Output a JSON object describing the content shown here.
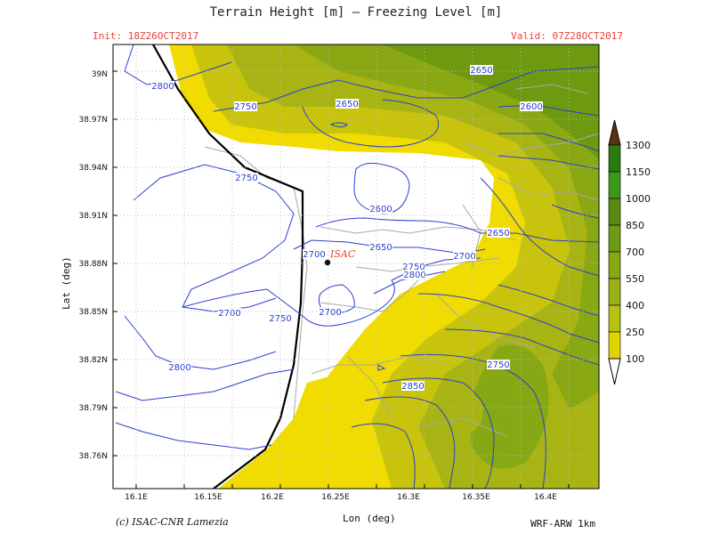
{
  "header": {
    "title": "Terrain Height [m] — Freezing Level [m]",
    "init": "Init: 18Z26OCT2017",
    "valid": "Valid: 07Z28OCT2017"
  },
  "footer": {
    "credit": "(c) ISAC-CNR Lamezia",
    "model": "WRF-ARW 1km"
  },
  "axes": {
    "xlabel": "Lon (deg)",
    "ylabel": "Lat (deg)",
    "xticks": [
      "16.1E",
      "16.15E",
      "16.2E",
      "16.25E",
      "16.3E",
      "16.35E",
      "16.4E"
    ],
    "yticks": [
      "39N",
      "38.97N",
      "38.94N",
      "38.91N",
      "38.88N",
      "38.85N",
      "38.82N",
      "38.79N",
      "38.76N"
    ]
  },
  "station": {
    "label": "ISAC"
  },
  "contour_labels": [
    "2800",
    "2750",
    "2650",
    "2650",
    "2600",
    "2750",
    "2600",
    "2650",
    "2650",
    "2700",
    "2700",
    "2750",
    "2800",
    "2700",
    "2750",
    "2700",
    "2800",
    "2750",
    "2850"
  ],
  "colorbar": {
    "levels": [
      "1300",
      "1150",
      "1000",
      "850",
      "700",
      "550",
      "400",
      "250",
      "100"
    ],
    "colors": [
      "#2a7a12",
      "#3a9a18",
      "#5a8a10",
      "#6e9a14",
      "#86a814",
      "#9ab018",
      "#b8c010",
      "#e0d400",
      "#f0e000"
    ]
  },
  "terrain_colors": {
    "low": "#f0dc00",
    "mid": "#c8c40e",
    "high": "#8aa814",
    "top": "#6e9a10"
  }
}
